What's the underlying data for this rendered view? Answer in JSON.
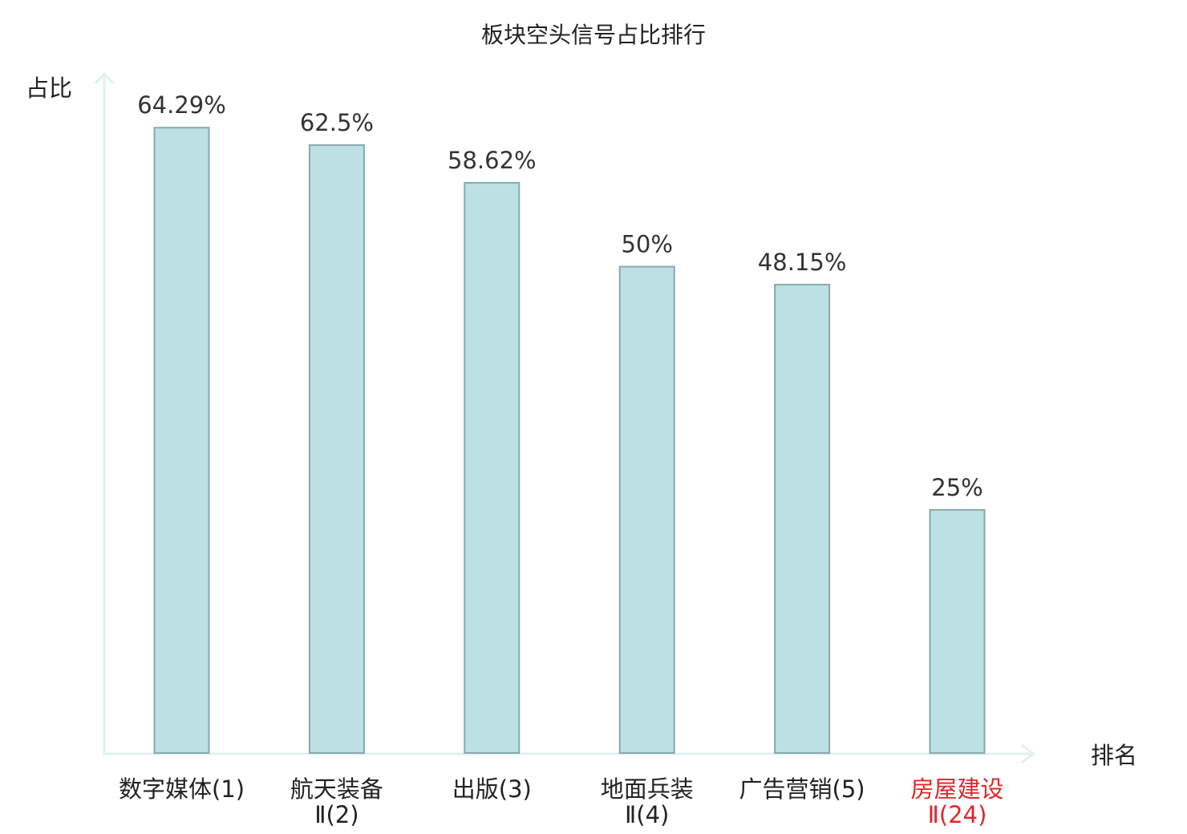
{
  "chart_data": {
    "type": "bar",
    "title": "板块空头信号占比排行",
    "xlabel": "排名",
    "ylabel": "占比",
    "ylim": [
      0,
      70
    ],
    "grid": false,
    "legend": "none",
    "categories": [
      {
        "line1": "数字媒体(1)",
        "line2": ""
      },
      {
        "line1": "航天装备",
        "line2": "Ⅱ(2)"
      },
      {
        "line1": "出版(3)",
        "line2": ""
      },
      {
        "line1": "地面兵装",
        "line2": "Ⅱ(4)"
      },
      {
        "line1": "广告营销(5)",
        "line2": ""
      },
      {
        "line1": "房屋建设",
        "line2": "Ⅱ(24)"
      }
    ],
    "values": [
      64.29,
      62.5,
      58.62,
      50,
      48.15,
      25
    ],
    "value_labels": [
      "64.29%",
      "62.5%",
      "58.62%",
      "50%",
      "48.15%",
      "25%"
    ],
    "highlight_index": 5,
    "colors": {
      "bar_fill": "#bce0e3",
      "bar_stroke": "#8aa9ab",
      "axis": "#dff2ef",
      "text": "#222222",
      "highlight_text": "#e0262a"
    }
  }
}
